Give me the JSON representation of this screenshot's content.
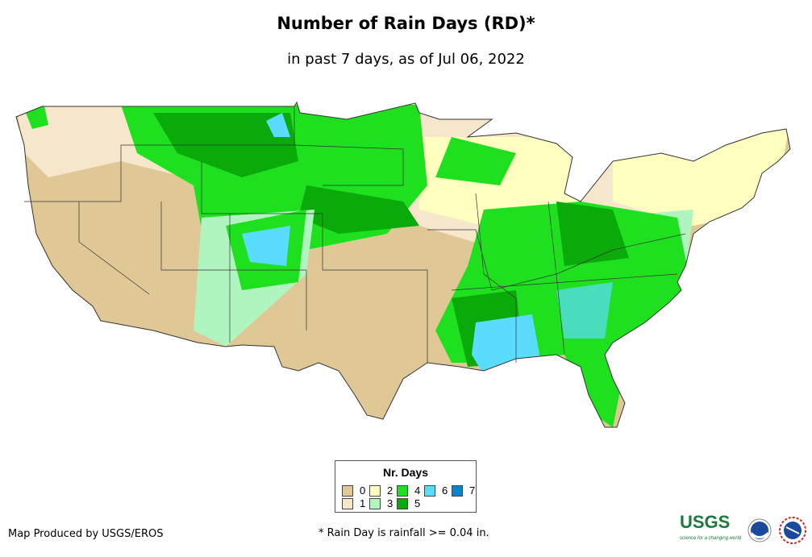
{
  "title": "Number of Rain Days (RD)*",
  "subtitle": "in past 7 days, as of Jul 06, 2022",
  "legend": {
    "title": "Nr. Days",
    "items": [
      {
        "label": "0",
        "color": "#dfc896"
      },
      {
        "label": "1",
        "color": "#f6e6cb"
      },
      {
        "label": "2",
        "color": "#ffffc0"
      },
      {
        "label": "3",
        "color": "#b0f5bf"
      },
      {
        "label": "4",
        "color": "#1ee01e"
      },
      {
        "label": "5",
        "color": "#0aaa0a"
      },
      {
        "label": "6",
        "color": "#5adcff"
      },
      {
        "label": "7",
        "color": "#0a84c8"
      }
    ]
  },
  "credit": "Map Produced by USGS/EROS",
  "footnote": "* Rain Day is rainfall >= 0.04 in.",
  "logos": {
    "usgs": "USGS",
    "usgs_tagline": "science for a changing world",
    "noaa": "noaa",
    "nws": "NATIONAL WEATHER SERVICE"
  }
}
